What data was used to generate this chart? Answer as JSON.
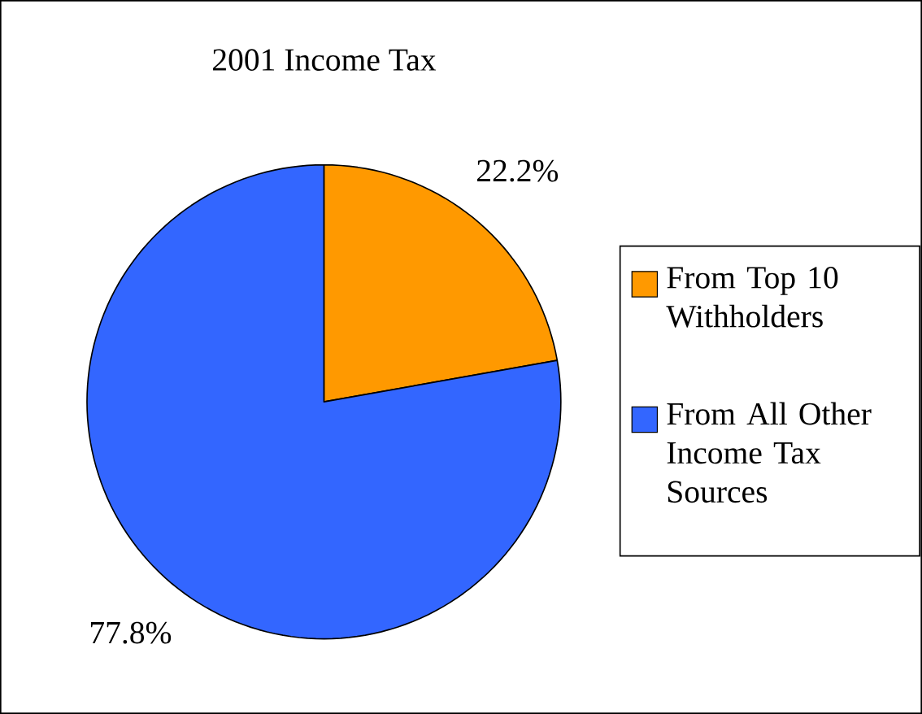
{
  "chart_data": {
    "type": "pie",
    "title": "2001 Income Tax",
    "categories": [
      "From Top 10 Withholders",
      "From All Other Income Tax Sources"
    ],
    "values": [
      22.2,
      77.8
    ],
    "colors": [
      "#ff9900",
      "#3366ff"
    ],
    "value_labels": [
      "22.2%",
      "77.8%"
    ],
    "legend": "right"
  }
}
